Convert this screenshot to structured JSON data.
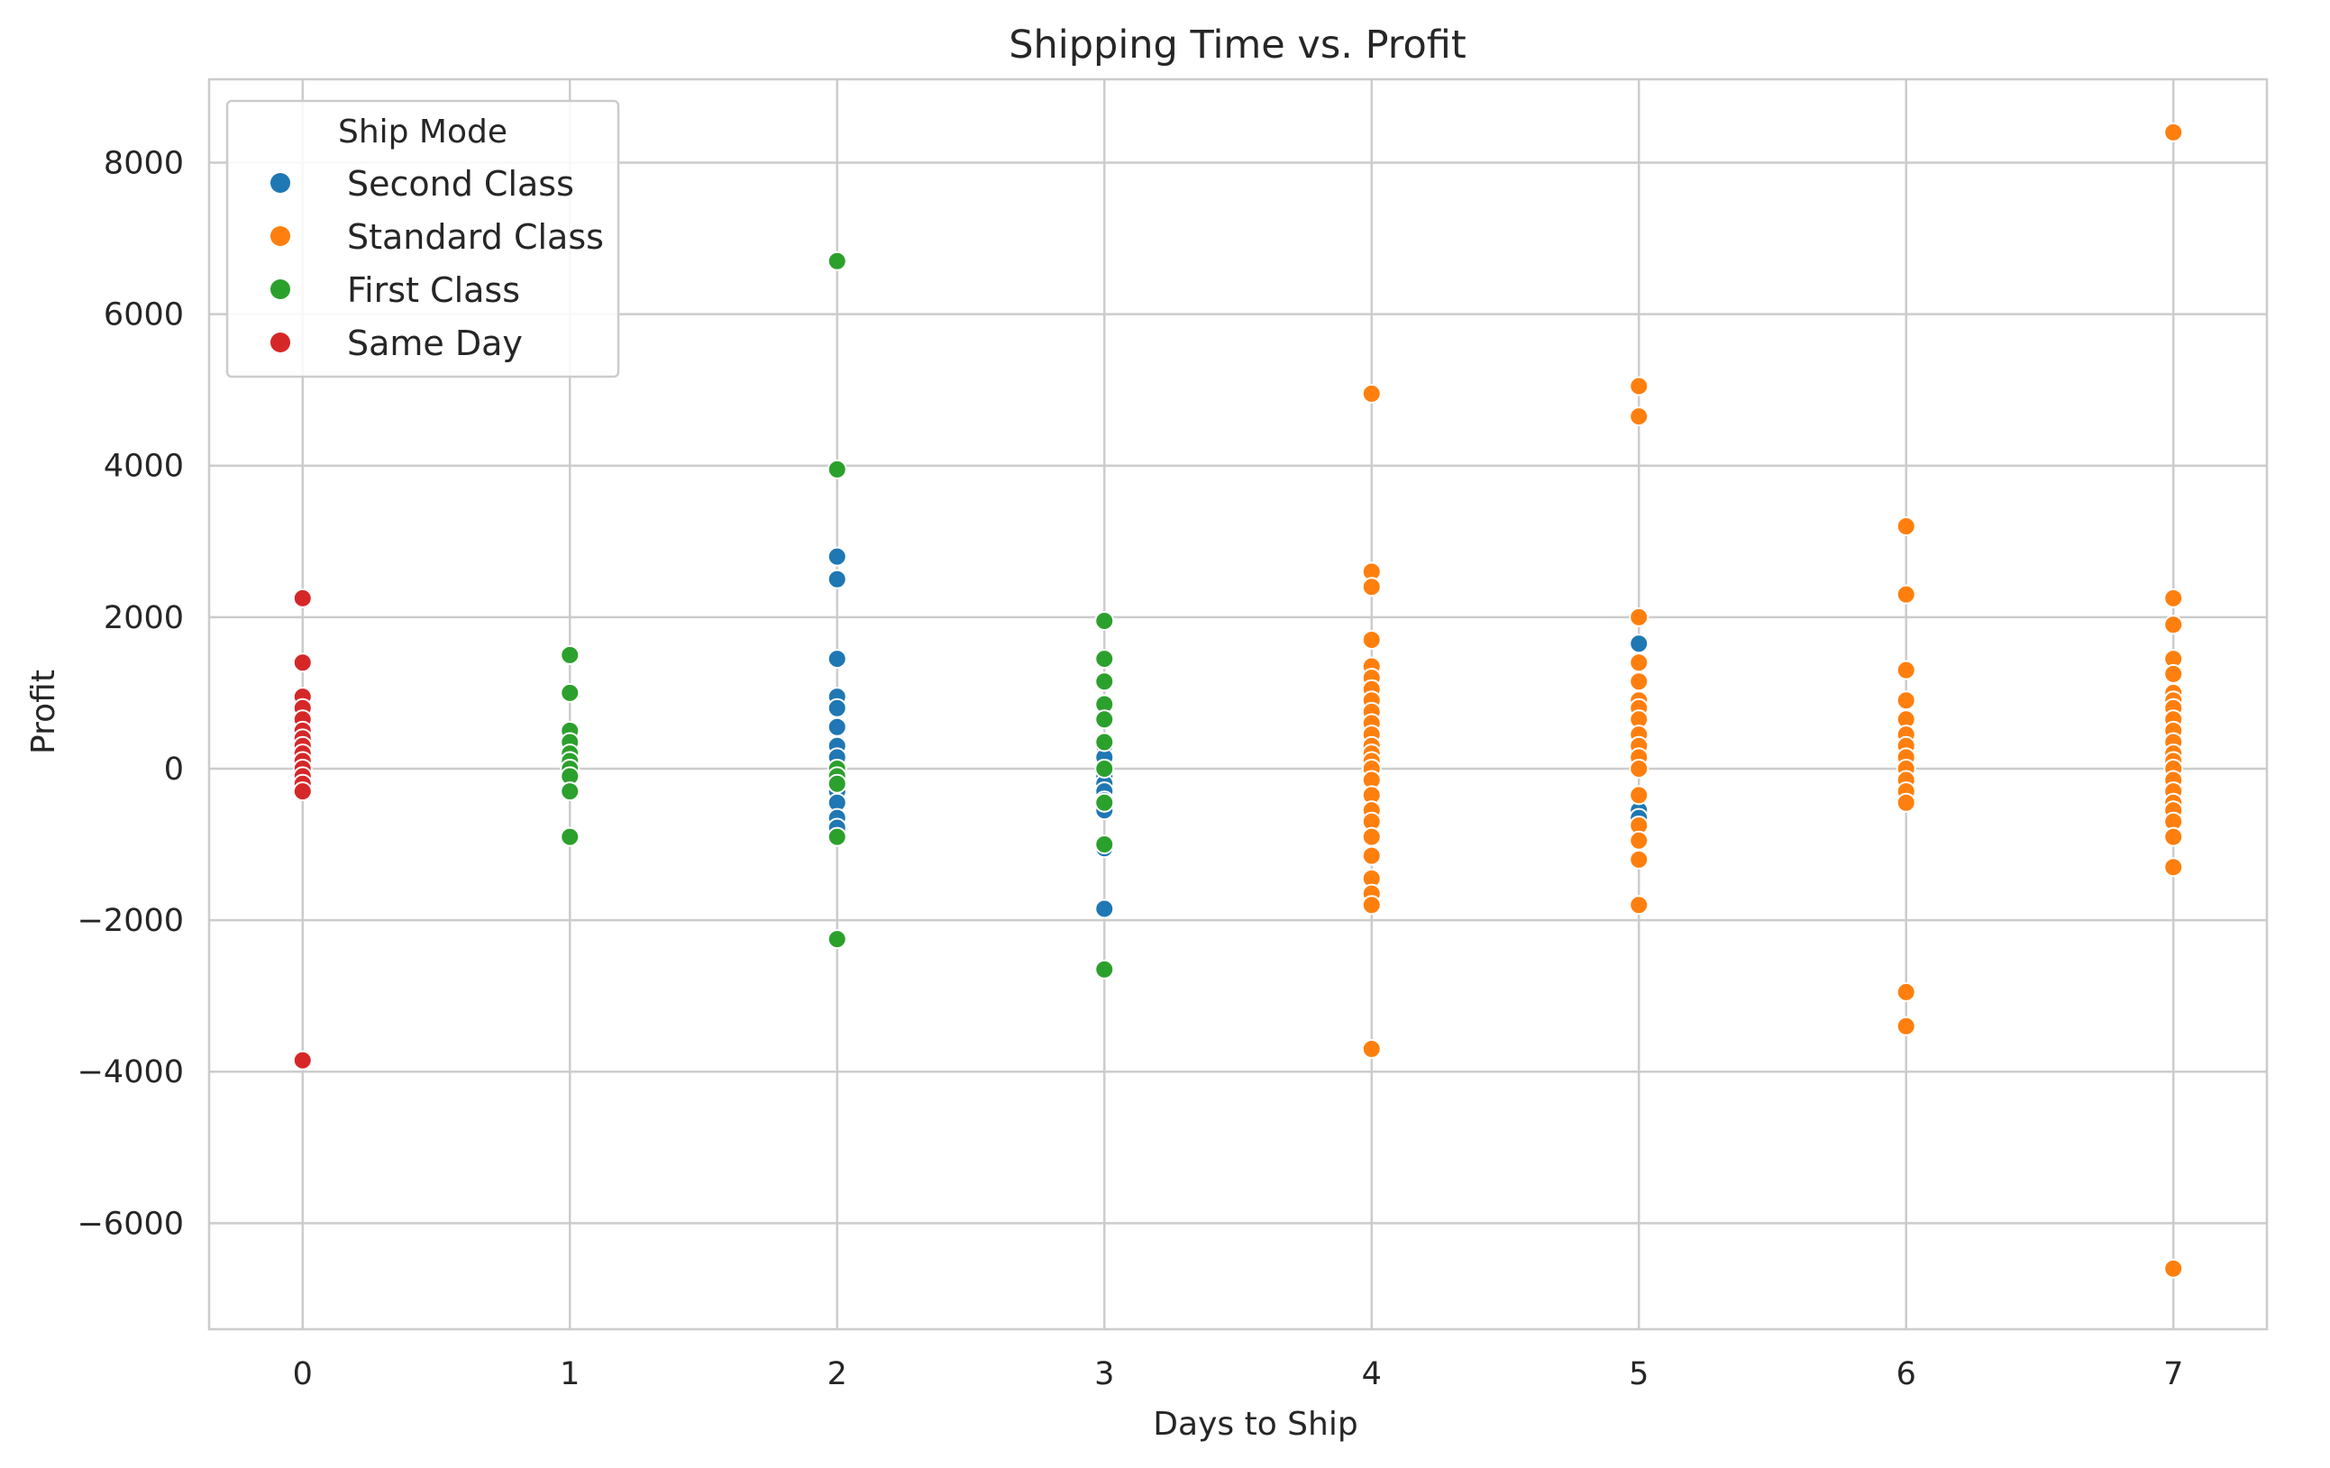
{
  "chart_data": {
    "type": "scatter",
    "title": "Shipping Time vs. Profit",
    "xlabel": "Days to Ship",
    "ylabel": "Profit",
    "xlim": [
      -0.35,
      7.35
    ],
    "ylim": [
      -7400,
      9100
    ],
    "xticks": [
      0,
      1,
      2,
      3,
      4,
      5,
      6,
      7
    ],
    "yticks": [
      -6000,
      -4000,
      -2000,
      0,
      2000,
      4000,
      6000,
      8000
    ],
    "ytick_labels": [
      "−6000",
      "−4000",
      "−2000",
      "0",
      "2000",
      "4000",
      "6000",
      "8000"
    ],
    "grid": true,
    "legend": {
      "title": "Ship Mode",
      "position": "top-left"
    },
    "series": [
      {
        "name": "Second Class",
        "color": "#1f77b4",
        "points": [
          [
            2,
            2800
          ],
          [
            2,
            2500
          ],
          [
            2,
            1450
          ],
          [
            2,
            950
          ],
          [
            2,
            800
          ],
          [
            2,
            550
          ],
          [
            2,
            300
          ],
          [
            2,
            150
          ],
          [
            2,
            0
          ],
          [
            2,
            -150
          ],
          [
            2,
            -300
          ],
          [
            2,
            -450
          ],
          [
            2,
            -650
          ],
          [
            2,
            -780
          ],
          [
            3,
            300
          ],
          [
            3,
            150
          ],
          [
            3,
            0
          ],
          [
            3,
            -100
          ],
          [
            3,
            -200
          ],
          [
            3,
            -300
          ],
          [
            3,
            -420
          ],
          [
            3,
            -550
          ],
          [
            3,
            -1050
          ],
          [
            3,
            -1850
          ],
          [
            5,
            1650
          ],
          [
            5,
            80
          ],
          [
            5,
            -550
          ],
          [
            5,
            -650
          ]
        ]
      },
      {
        "name": "Standard Class",
        "color": "#ff7f0e",
        "points": [
          [
            4,
            4950
          ],
          [
            4,
            2600
          ],
          [
            4,
            2400
          ],
          [
            4,
            1700
          ],
          [
            4,
            1350
          ],
          [
            4,
            1200
          ],
          [
            4,
            1050
          ],
          [
            4,
            900
          ],
          [
            4,
            750
          ],
          [
            4,
            600
          ],
          [
            4,
            450
          ],
          [
            4,
            300
          ],
          [
            4,
            200
          ],
          [
            4,
            100
          ],
          [
            4,
            0
          ],
          [
            4,
            -150
          ],
          [
            4,
            -350
          ],
          [
            4,
            -550
          ],
          [
            4,
            -700
          ],
          [
            4,
            -900
          ],
          [
            4,
            -1150
          ],
          [
            4,
            -1450
          ],
          [
            4,
            -1650
          ],
          [
            4,
            -1800
          ],
          [
            4,
            -3700
          ],
          [
            5,
            5050
          ],
          [
            5,
            4650
          ],
          [
            5,
            2000
          ],
          [
            5,
            1400
          ],
          [
            5,
            1150
          ],
          [
            5,
            900
          ],
          [
            5,
            800
          ],
          [
            5,
            650
          ],
          [
            5,
            450
          ],
          [
            5,
            300
          ],
          [
            5,
            150
          ],
          [
            5,
            0
          ],
          [
            5,
            -350
          ],
          [
            5,
            -750
          ],
          [
            5,
            -950
          ],
          [
            5,
            -1200
          ],
          [
            5,
            -1800
          ],
          [
            6,
            3200
          ],
          [
            6,
            2300
          ],
          [
            6,
            1300
          ],
          [
            6,
            900
          ],
          [
            6,
            650
          ],
          [
            6,
            450
          ],
          [
            6,
            300
          ],
          [
            6,
            150
          ],
          [
            6,
            0
          ],
          [
            6,
            -150
          ],
          [
            6,
            -300
          ],
          [
            6,
            -450
          ],
          [
            6,
            -2950
          ],
          [
            6,
            -3400
          ],
          [
            7,
            8400
          ],
          [
            7,
            2250
          ],
          [
            7,
            1900
          ],
          [
            7,
            1450
          ],
          [
            7,
            1250
          ],
          [
            7,
            1000
          ],
          [
            7,
            900
          ],
          [
            7,
            800
          ],
          [
            7,
            650
          ],
          [
            7,
            500
          ],
          [
            7,
            350
          ],
          [
            7,
            200
          ],
          [
            7,
            100
          ],
          [
            7,
            0
          ],
          [
            7,
            -150
          ],
          [
            7,
            -300
          ],
          [
            7,
            -450
          ],
          [
            7,
            -550
          ],
          [
            7,
            -700
          ],
          [
            7,
            -900
          ],
          [
            7,
            -1300
          ],
          [
            7,
            -6600
          ]
        ]
      },
      {
        "name": "First Class",
        "color": "#2ca02c",
        "points": [
          [
            1,
            1500
          ],
          [
            1,
            1000
          ],
          [
            1,
            500
          ],
          [
            1,
            350
          ],
          [
            1,
            200
          ],
          [
            1,
            100
          ],
          [
            1,
            0
          ],
          [
            1,
            -100
          ],
          [
            1,
            -300
          ],
          [
            1,
            -900
          ],
          [
            2,
            6700
          ],
          [
            2,
            3950
          ],
          [
            2,
            0
          ],
          [
            2,
            -100
          ],
          [
            2,
            -200
          ],
          [
            2,
            -900
          ],
          [
            2,
            -2250
          ],
          [
            3,
            1950
          ],
          [
            3,
            1450
          ],
          [
            3,
            1150
          ],
          [
            3,
            850
          ],
          [
            3,
            650
          ],
          [
            3,
            350
          ],
          [
            3,
            0
          ],
          [
            3,
            -450
          ],
          [
            3,
            -1000
          ],
          [
            3,
            -2650
          ]
        ]
      },
      {
        "name": "Same Day",
        "color": "#d62728",
        "points": [
          [
            0,
            2250
          ],
          [
            0,
            1400
          ],
          [
            0,
            950
          ],
          [
            0,
            800
          ],
          [
            0,
            650
          ],
          [
            0,
            500
          ],
          [
            0,
            400
          ],
          [
            0,
            300
          ],
          [
            0,
            200
          ],
          [
            0,
            100
          ],
          [
            0,
            0
          ],
          [
            0,
            -100
          ],
          [
            0,
            -200
          ],
          [
            0,
            -300
          ],
          [
            0,
            -3850
          ]
        ]
      }
    ]
  }
}
